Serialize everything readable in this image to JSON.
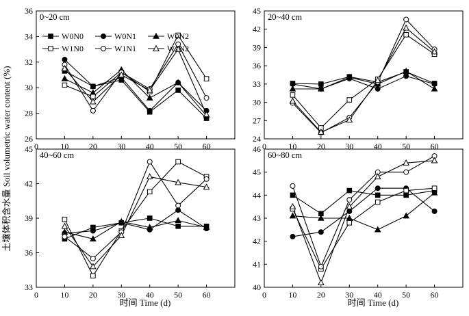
{
  "figure": {
    "xlabel": "时间 Time (d)",
    "ylabel": "土壤体积含水量 Soil volumetric water content (%)"
  },
  "chart_data": [
    {
      "type": "line",
      "panel": "0~20 cm",
      "x": [
        10,
        20,
        30,
        40,
        50,
        60
      ],
      "xlim": [
        0,
        70
      ],
      "xticks": [
        "0",
        "10",
        "20",
        "30",
        "40",
        "50",
        "60"
      ],
      "ylim": [
        26,
        36
      ],
      "yticks": [
        "26",
        "28",
        "30",
        "32",
        "34",
        "36"
      ],
      "legend": "top-left",
      "series": [
        {
          "name": "W0N0",
          "marker": "square-filled",
          "values": [
            31.3,
            30.1,
            30.6,
            28.1,
            29.8,
            27.6
          ]
        },
        {
          "name": "W0N1",
          "marker": "circle-filled",
          "values": [
            32.2,
            30.1,
            30.8,
            28.2,
            30.4,
            28.2
          ]
        },
        {
          "name": "W0N2",
          "marker": "triangle-filled",
          "values": [
            30.7,
            29.6,
            31.4,
            29.2,
            30.4,
            27.8
          ]
        },
        {
          "name": "W1N0",
          "marker": "square-open",
          "values": [
            30.2,
            29.3,
            31.2,
            29.7,
            34.1,
            30.7
          ]
        },
        {
          "name": "W1N1",
          "marker": "circle-open",
          "values": [
            31.8,
            28.2,
            31.2,
            29.9,
            33.4,
            29.2
          ]
        },
        {
          "name": "W1N2",
          "marker": "triangle-open",
          "values": [
            31.5,
            28.9,
            31.0,
            29.8,
            33.0,
            27.9
          ]
        }
      ]
    },
    {
      "type": "line",
      "panel": "20~40 cm",
      "x": [
        10,
        20,
        30,
        40,
        50,
        60
      ],
      "xlim": [
        0,
        70
      ],
      "xticks": [
        "0",
        "10",
        "20",
        "30",
        "40",
        "50",
        "60"
      ],
      "ylim": [
        24,
        45
      ],
      "yticks": [
        "24",
        "27",
        "30",
        "33",
        "36",
        "39",
        "42",
        "45"
      ],
      "series": [
        {
          "name": "W0N0",
          "marker": "square-filled",
          "values": [
            33.1,
            33.0,
            34.2,
            33.3,
            35.0,
            33.1
          ]
        },
        {
          "name": "W0N1",
          "marker": "circle-filled",
          "values": [
            33.0,
            32.2,
            33.9,
            32.2,
            34.3,
            33.0
          ]
        },
        {
          "name": "W0N2",
          "marker": "triangle-filled",
          "values": [
            32.2,
            32.2,
            34.1,
            33.0,
            35.1,
            32.2
          ]
        },
        {
          "name": "W1N0",
          "marker": "square-open",
          "values": [
            31.2,
            25.8,
            30.4,
            33.8,
            41.1,
            37.9
          ]
        },
        {
          "name": "W1N1",
          "marker": "circle-open",
          "values": [
            29.9,
            25.0,
            27.5,
            33.3,
            43.6,
            38.7
          ]
        },
        {
          "name": "W1N2",
          "marker": "triangle-open",
          "values": [
            30.2,
            25.1,
            27.1,
            33.6,
            42.2,
            38.3
          ]
        }
      ]
    },
    {
      "type": "line",
      "panel": "40~60 cm",
      "x": [
        10,
        20,
        30,
        40,
        50,
        60
      ],
      "xlim": [
        0,
        70
      ],
      "xticks": [
        "0",
        "10",
        "20",
        "30",
        "40",
        "50",
        "60"
      ],
      "ylim": [
        33,
        45
      ],
      "yticks": [
        "33",
        "36",
        "39",
        "42",
        "45"
      ],
      "series": [
        {
          "name": "W0N0",
          "marker": "square-filled",
          "values": [
            37.2,
            38.2,
            38.6,
            39.0,
            38.3,
            38.3
          ]
        },
        {
          "name": "W0N1",
          "marker": "circle-filled",
          "values": [
            37.7,
            37.9,
            38.6,
            38.0,
            39.7,
            38.1
          ]
        },
        {
          "name": "W0N2",
          "marker": "triangle-filled",
          "values": [
            37.8,
            37.2,
            38.7,
            38.2,
            38.8,
            38.2
          ]
        },
        {
          "name": "W1N0",
          "marker": "square-open",
          "values": [
            38.9,
            34.0,
            37.9,
            41.3,
            43.9,
            42.6
          ]
        },
        {
          "name": "W1N1",
          "marker": "circle-open",
          "values": [
            37.4,
            35.5,
            37.8,
            43.9,
            40.1,
            42.4
          ]
        },
        {
          "name": "W1N2",
          "marker": "triangle-open",
          "values": [
            38.3,
            34.8,
            37.5,
            42.6,
            42.1,
            41.7
          ]
        }
      ]
    },
    {
      "type": "line",
      "panel": "60~80 cm",
      "x": [
        10,
        20,
        30,
        40,
        50,
        60
      ],
      "xlim": [
        0,
        70
      ],
      "xticks": [
        "0",
        "10",
        "20",
        "30",
        "40",
        "50",
        "60"
      ],
      "ylim": [
        40,
        46
      ],
      "yticks": [
        "40",
        "41",
        "42",
        "43",
        "44",
        "45",
        "46"
      ],
      "series": [
        {
          "name": "W0N0",
          "marker": "square-filled",
          "values": [
            44.0,
            43.2,
            44.2,
            44.0,
            44.0,
            44.2
          ]
        },
        {
          "name": "W0N1",
          "marker": "circle-filled",
          "values": [
            42.2,
            42.4,
            43.3,
            44.3,
            44.3,
            43.3
          ]
        },
        {
          "name": "W0N2",
          "marker": "triangle-filled",
          "values": [
            43.1,
            43.0,
            43.0,
            42.5,
            43.1,
            44.1
          ]
        },
        {
          "name": "W1N0",
          "marker": "square-open",
          "values": [
            43.4,
            40.8,
            42.8,
            43.7,
            44.2,
            44.3
          ]
        },
        {
          "name": "W1N1",
          "marker": "circle-open",
          "values": [
            44.4,
            40.9,
            43.8,
            45.0,
            45.0,
            45.7
          ]
        },
        {
          "name": "W1N2",
          "marker": "triangle-open",
          "values": [
            43.5,
            40.2,
            43.5,
            44.8,
            45.4,
            45.5
          ]
        }
      ]
    }
  ]
}
